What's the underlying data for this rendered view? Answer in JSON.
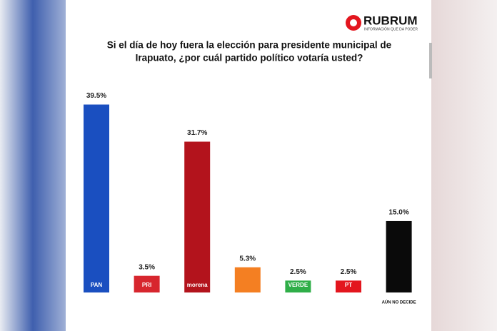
{
  "brand": {
    "name": "RUBRUM",
    "tagline": "INFORMACIÓN QUE DA PODER"
  },
  "chart_data": {
    "type": "bar",
    "title_lines": [
      "Si el día de hoy fuera la elección para presidente municipal de",
      "Irapuato, ¿por cuál partido político votaría usted?"
    ],
    "categories": [
      "PAN",
      "PRI",
      "morena",
      null,
      "VERDE",
      "PT",
      "AÚN NO DECIDE"
    ],
    "values": [
      39.5,
      3.5,
      31.7,
      5.3,
      2.5,
      2.5,
      15.0
    ],
    "value_labels": [
      "39.5%",
      "3.5%",
      "31.7%",
      "5.3%",
      "2.5%",
      "2.5%",
      "15.0%"
    ],
    "colors": [
      "#1a4fc0",
      "#d7262e",
      "#b3131c",
      "#f47f22",
      "#2fae48",
      "#e3161e",
      "#0a0a0a"
    ]
  }
}
